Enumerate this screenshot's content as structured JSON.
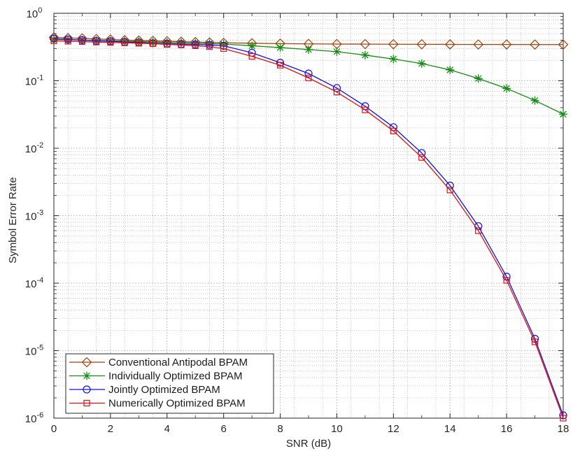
{
  "chart_data": {
    "type": "line",
    "title": "",
    "xlabel": "SNR (dB)",
    "ylabel": "Symbol Error Rate",
    "xlim": [
      0,
      18
    ],
    "ylim": [
      1e-06,
      1
    ],
    "yscale": "log",
    "grid": "on (major and minor)",
    "legend_position": "bottom-left",
    "x_ticks": [
      "0",
      "2",
      "4",
      "6",
      "8",
      "10",
      "12",
      "14",
      "16",
      "18"
    ],
    "y_ticks": [
      {
        "base": "10",
        "exp": "0"
      },
      {
        "base": "10",
        "exp": "-1"
      },
      {
        "base": "10",
        "exp": "-2"
      },
      {
        "base": "10",
        "exp": "-3"
      },
      {
        "base": "10",
        "exp": "-4"
      },
      {
        "base": "10",
        "exp": "-5"
      },
      {
        "base": "10",
        "exp": "-6"
      }
    ],
    "series": [
      {
        "name": "Conventional Antipodal BPAM",
        "color": "#A0420C",
        "marker": "diamond",
        "x": [
          0,
          0.5,
          1,
          1.5,
          2,
          2.5,
          3,
          3.5,
          4,
          4.5,
          5,
          5.5,
          6,
          7,
          8,
          9,
          10,
          11,
          12,
          13,
          14,
          15,
          16,
          17,
          18
        ],
        "y": [
          0.44,
          0.43,
          0.425,
          0.415,
          0.41,
          0.4,
          0.395,
          0.39,
          0.385,
          0.38,
          0.375,
          0.37,
          0.365,
          0.36,
          0.355,
          0.352,
          0.35,
          0.349,
          0.348,
          0.347,
          0.346,
          0.345,
          0.345,
          0.344,
          0.344
        ]
      },
      {
        "name": "Individually Optimized BPAM",
        "color": "#138A13",
        "marker": "asterisk",
        "x": [
          0,
          0.5,
          1,
          1.5,
          2,
          2.5,
          3,
          3.5,
          4,
          4.5,
          5,
          5.5,
          6,
          7,
          8,
          9,
          10,
          11,
          12,
          13,
          14,
          15,
          16,
          17,
          18
        ],
        "y": [
          0.41,
          0.405,
          0.4,
          0.395,
          0.39,
          0.385,
          0.38,
          0.375,
          0.37,
          0.365,
          0.36,
          0.355,
          0.35,
          0.33,
          0.31,
          0.29,
          0.27,
          0.24,
          0.21,
          0.18,
          0.145,
          0.108,
          0.077,
          0.051,
          0.032
        ]
      },
      {
        "name": "Jointly Optimized BPAM",
        "color": "#1010E0",
        "marker": "circle",
        "x": [
          0,
          0.5,
          1,
          1.5,
          2,
          2.5,
          3,
          3.5,
          4,
          4.5,
          5,
          5.5,
          6,
          7,
          8,
          9,
          10,
          11,
          12,
          13,
          14,
          15,
          16,
          17,
          18
        ],
        "y": [
          0.42,
          0.41,
          0.4,
          0.39,
          0.385,
          0.375,
          0.37,
          0.36,
          0.355,
          0.35,
          0.345,
          0.34,
          0.33,
          0.26,
          0.185,
          0.128,
          0.078,
          0.042,
          0.0205,
          0.0085,
          0.0028,
          0.0007,
          0.000125,
          1.5e-05,
          1.1e-06
        ]
      },
      {
        "name": "Numerically Optimized BPAM",
        "color": "#E01010",
        "marker": "square",
        "x": [
          0,
          0.5,
          1,
          1.5,
          2,
          2.5,
          3,
          3.5,
          4,
          4.5,
          5,
          5.5,
          6,
          7,
          8,
          9,
          10,
          11,
          12,
          13,
          14,
          15,
          16,
          17,
          18
        ],
        "y": [
          0.39,
          0.385,
          0.38,
          0.375,
          0.37,
          0.365,
          0.36,
          0.355,
          0.345,
          0.34,
          0.33,
          0.32,
          0.3,
          0.23,
          0.17,
          0.11,
          0.068,
          0.037,
          0.018,
          0.0073,
          0.0024,
          0.0006,
          0.00011,
          1.35e-05,
          1e-06
        ]
      }
    ]
  }
}
